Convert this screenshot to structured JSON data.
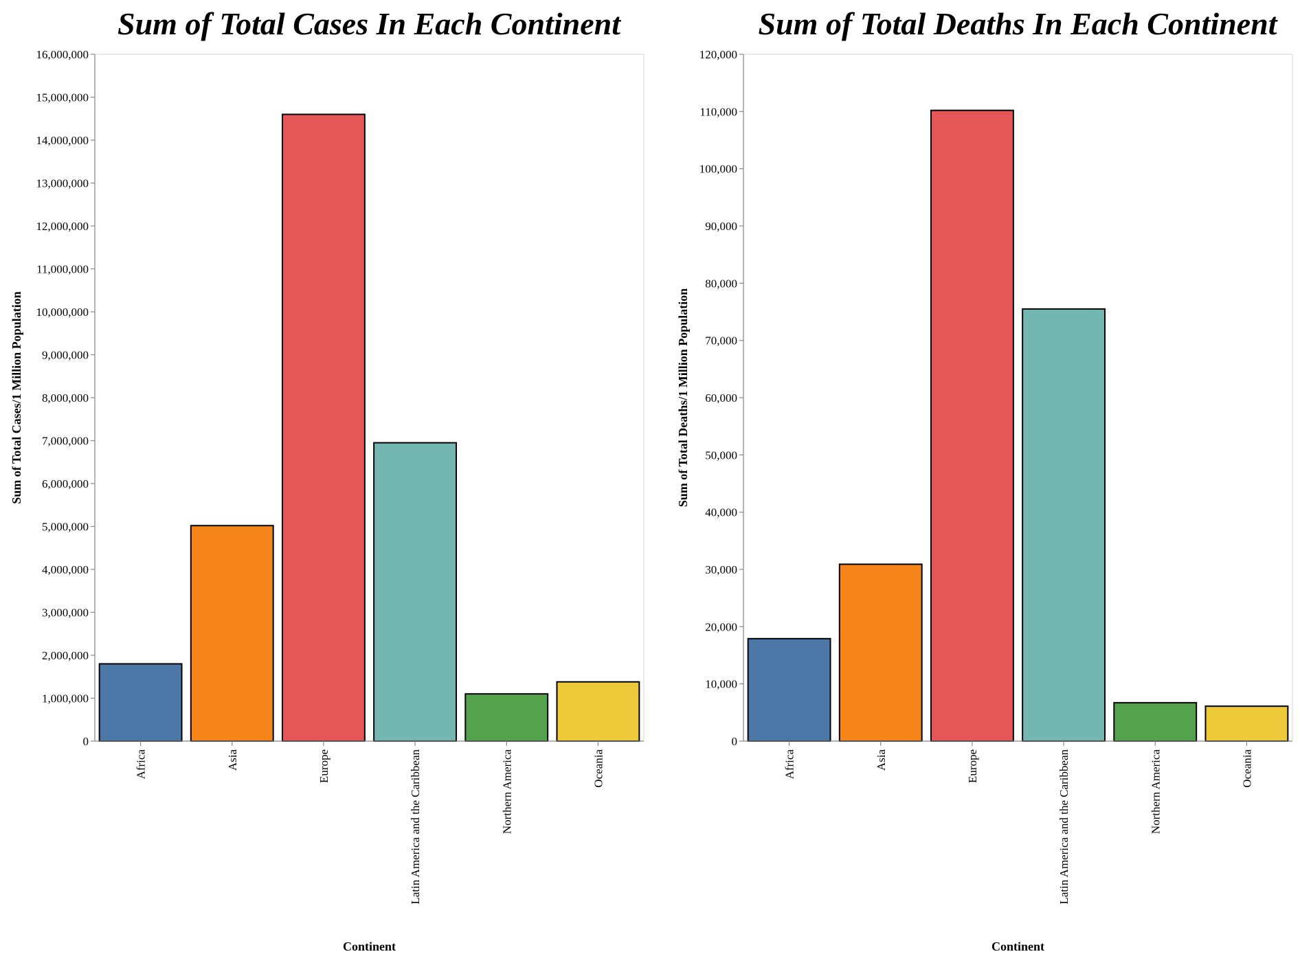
{
  "chart_data": [
    {
      "type": "bar",
      "title": "Sum of Total Cases In Each Continent",
      "xlabel": "Continent",
      "ylabel": "Sum of Total Cases/1 Million Population",
      "ylim": [
        0,
        16000000
      ],
      "yticks": [
        0,
        1000000,
        2000000,
        3000000,
        4000000,
        5000000,
        6000000,
        7000000,
        8000000,
        9000000,
        10000000,
        11000000,
        12000000,
        13000000,
        14000000,
        15000000,
        16000000
      ],
      "categories": [
        "Africa",
        "Asia",
        "Europe",
        "Latin America and the Caribbean",
        "Northern America",
        "Oceania"
      ],
      "values": [
        1800000,
        5020000,
        14600000,
        6950000,
        1100000,
        1380000
      ],
      "colors": [
        "#4c78a8",
        "#f58518",
        "#e45756",
        "#72b7b2",
        "#54a24b",
        "#eeca3b"
      ],
      "grid": false,
      "legend": "none"
    },
    {
      "type": "bar",
      "title": "Sum of Total Deaths In Each Continent",
      "xlabel": "Continent",
      "ylabel": "Sum of Total Deaths/1 Million Population",
      "ylim": [
        0,
        120000
      ],
      "yticks": [
        0,
        10000,
        20000,
        30000,
        40000,
        50000,
        60000,
        70000,
        80000,
        90000,
        100000,
        110000,
        120000
      ],
      "categories": [
        "Africa",
        "Asia",
        "Europe",
        "Latin America and the Caribbean",
        "Northern America",
        "Oceania"
      ],
      "values": [
        17900,
        30900,
        110200,
        75500,
        6700,
        6100
      ],
      "colors": [
        "#4c78a8",
        "#f58518",
        "#e45756",
        "#72b7b2",
        "#54a24b",
        "#eeca3b"
      ],
      "grid": false,
      "legend": "none"
    }
  ]
}
